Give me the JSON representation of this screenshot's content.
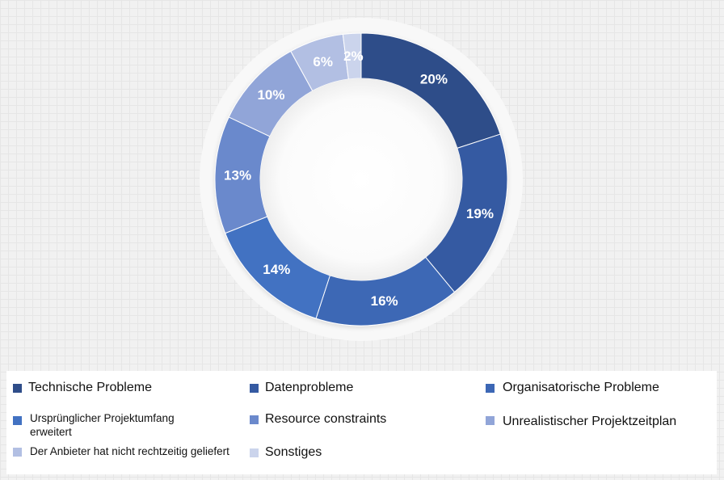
{
  "chart_data": {
    "type": "pie",
    "style": "donut",
    "legend_position": "bottom",
    "categories": [
      "Technische Probleme",
      "Datenprobleme",
      "Organisatorische Probleme",
      "Ursprünglicher Projektumfang erweitert",
      "Resource constraints",
      "Unrealistischer Projektzeitplan",
      "Der Anbieter hat nicht rechtzeitig geliefert",
      "Sonstiges"
    ],
    "values": [
      20,
      19,
      16,
      14,
      13,
      10,
      6,
      2
    ],
    "value_labels": [
      "20%",
      "19%",
      "16%",
      "14%",
      "13%",
      "10%",
      "6%",
      "2%"
    ],
    "colors": [
      "#2f4d89",
      "#355aa2",
      "#3c67b5",
      "#4272c2",
      "#6b89cc",
      "#91a5d8",
      "#b2bfe3",
      "#cbd4ec"
    ]
  },
  "legend": {
    "items": [
      {
        "label": "Technische Probleme",
        "color": "#2f4d89"
      },
      {
        "label": "Datenprobleme",
        "color": "#355aa2"
      },
      {
        "label": "Organisatorische Probleme",
        "color": "#3c67b5"
      },
      {
        "label": "Ursprünglicher Projektumfang erweitert",
        "color": "#4272c2"
      },
      {
        "label": "Resource constraints",
        "color": "#6b89cc"
      },
      {
        "label": "Unrealistischer Projektzeitplan",
        "color": "#91a5d8"
      },
      {
        "label": "Der Anbieter hat nicht rechtzeitig geliefert",
        "color": "#b2bfe3"
      },
      {
        "label": "Sonstiges",
        "color": "#cbd4ec"
      }
    ]
  }
}
